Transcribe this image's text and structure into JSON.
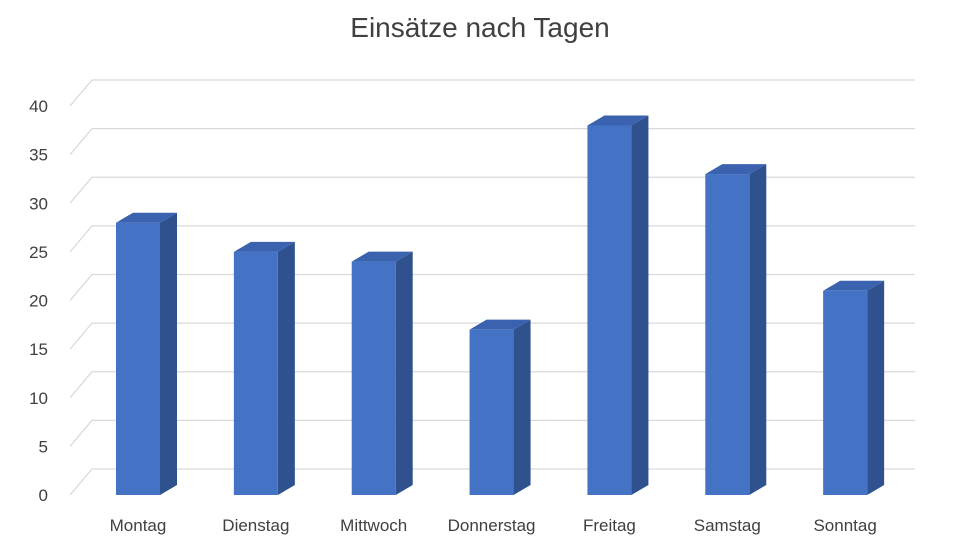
{
  "chart_data": {
    "type": "bar",
    "title": "Einsätze nach Tagen",
    "categories": [
      "Montag",
      "Dienstag",
      "Mittwoch",
      "Donnerstag",
      "Freitag",
      "Samstag",
      "Sonntag"
    ],
    "series": [
      {
        "values": [
          28,
          25,
          24,
          17,
          38,
          33,
          21
        ]
      }
    ],
    "ylim": [
      0,
      40
    ],
    "yticks": [
      0,
      5,
      10,
      15,
      20,
      25,
      30,
      35,
      40
    ],
    "grid": true,
    "style": "3d-column",
    "colors": {
      "bar_front": "#4472C4",
      "bar_side": "#2F528F",
      "bar_top": "#3A62AE",
      "grid": "#D9D9D9",
      "text": "#404040"
    }
  }
}
